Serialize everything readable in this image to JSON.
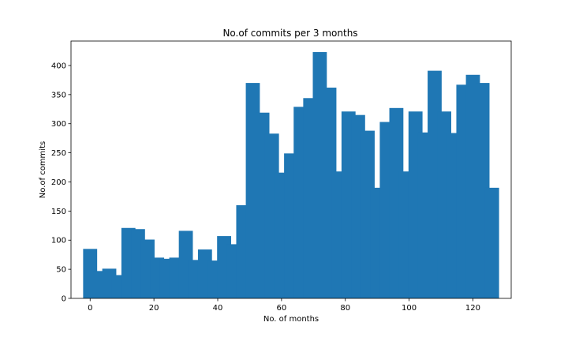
{
  "chart_data": {
    "type": "bar",
    "title": "No.of commits per 3 months",
    "xlabel": "No. of months",
    "ylabel": "No.of commits",
    "xlim": [
      -6,
      132
    ],
    "ylim": [
      0,
      442
    ],
    "xticks": [
      0,
      20,
      40,
      60,
      80,
      100,
      120
    ],
    "yticks": [
      0,
      50,
      100,
      150,
      200,
      250,
      300,
      350,
      400
    ],
    "bar_width": 1,
    "color": "#1f77b4",
    "grid": false,
    "x": [
      0,
      3,
      6,
      9,
      12,
      15,
      18,
      21,
      24,
      27,
      30,
      33,
      36,
      39,
      42,
      45,
      48,
      51,
      54,
      57,
      60,
      63,
      66,
      69,
      72,
      75,
      78,
      81,
      84,
      87,
      90,
      93,
      96,
      99,
      102,
      105,
      108,
      111,
      114,
      117,
      120,
      123,
      126
    ],
    "values": [
      85,
      47,
      51,
      40,
      121,
      119,
      101,
      70,
      68,
      70,
      116,
      66,
      84,
      65,
      107,
      93,
      160,
      370,
      319,
      283,
      216,
      249,
      329,
      344,
      423,
      362,
      218,
      321,
      315,
      288,
      190,
      303,
      327,
      218,
      321,
      285,
      391,
      321,
      284,
      367,
      384,
      370,
      190
    ]
  }
}
